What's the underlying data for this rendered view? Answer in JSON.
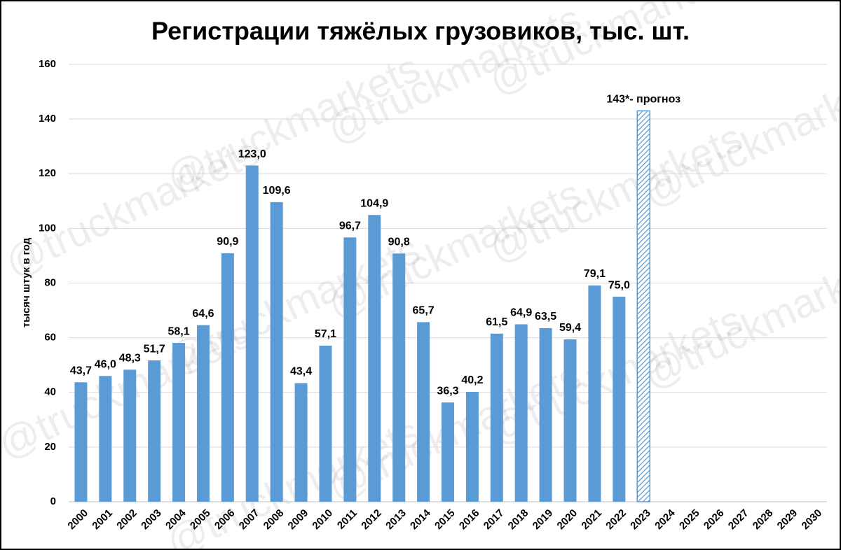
{
  "chart_data": {
    "type": "bar",
    "title": "Регистрации тяжёлых грузовиков, тыс. шт.",
    "y_label": "тысяч штук в год",
    "watermark": "@truckmarkets",
    "categories": [
      "2000",
      "2001",
      "2002",
      "2003",
      "2004",
      "2005",
      "2006",
      "2007",
      "2008",
      "2009",
      "2010",
      "2011",
      "2012",
      "2013",
      "2014",
      "2015",
      "2016",
      "2017",
      "2018",
      "2019",
      "2020",
      "2021",
      "2022",
      "2023",
      "2024",
      "2025",
      "2026",
      "2027",
      "2028",
      "2029",
      "2030"
    ],
    "values": [
      43.7,
      46.0,
      48.3,
      51.7,
      58.1,
      64.6,
      90.9,
      123.0,
      109.6,
      43.4,
      57.1,
      96.7,
      104.9,
      90.8,
      65.7,
      36.3,
      40.2,
      61.5,
      64.9,
      63.5,
      59.4,
      79.1,
      75.0,
      143,
      null,
      null,
      null,
      null,
      null,
      null,
      null
    ],
    "value_labels": [
      "43,7",
      "46,0",
      "48,3",
      "51,7",
      "58,1",
      "64,6",
      "90,9",
      "123,0",
      "109,6",
      "43,4",
      "57,1",
      "96,7",
      "104,9",
      "90,8",
      "65,7",
      "36,3",
      "40,2",
      "61,5",
      "64,9",
      "63,5",
      "59,4",
      "79,1",
      "75,0",
      "143*- прогноз",
      null,
      null,
      null,
      null,
      null,
      null,
      null
    ],
    "hatched_category": "2023",
    "color": "#5b9bd5",
    "ylim": [
      0,
      160
    ],
    "yticks": [
      0,
      20,
      40,
      60,
      80,
      100,
      120,
      140,
      160
    ],
    "grid": true
  }
}
